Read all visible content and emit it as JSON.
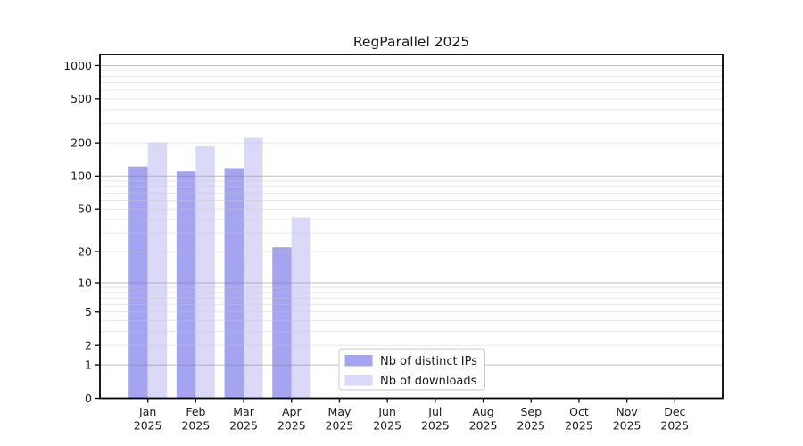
{
  "chart_data": {
    "type": "bar",
    "title": "RegParallel 2025",
    "categories": [
      "Jan",
      "Feb",
      "Mar",
      "Apr",
      "May",
      "Jun",
      "Jul",
      "Aug",
      "Sep",
      "Oct",
      "Nov",
      "Dec"
    ],
    "x_tick_line2": "2025",
    "series": [
      {
        "name": "Nb of distinct IPs",
        "color": "#a4a4f1",
        "values": [
          122,
          110,
          118,
          22,
          null,
          null,
          null,
          null,
          null,
          null,
          null,
          null
        ]
      },
      {
        "name": "Nb of downloads",
        "color": "#dadaf8",
        "values": [
          202,
          186,
          222,
          42,
          null,
          null,
          null,
          null,
          null,
          null,
          null,
          null
        ]
      }
    ],
    "yticks": [
      0,
      1,
      2,
      5,
      10,
      20,
      50,
      100,
      200,
      500,
      1000
    ],
    "ylabel": "",
    "xlabel": "",
    "yscale": "log10(value+1)",
    "ylim": [
      0,
      1260
    ],
    "grid": "horizontal major+minor, drawn over bars",
    "legend_position": "inside plot, bottom center-left"
  },
  "colors": {
    "background": "#ffffff",
    "axis": "#000000",
    "tick_label": "#1a1a1a",
    "grid_major": "#808080",
    "grid_minor": "#c8c8c8",
    "legend_border": "#c8c8c8",
    "legend_bg": "#ffffff"
  }
}
